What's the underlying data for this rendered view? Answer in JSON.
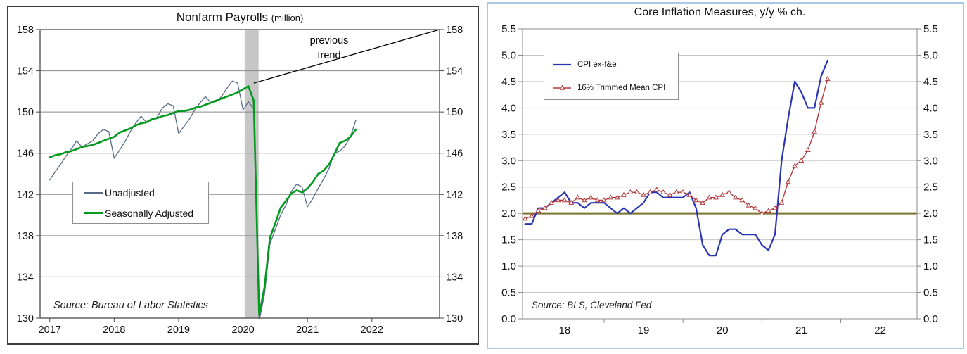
{
  "panels": {
    "left": {
      "title": "Nonfarm Payrolls",
      "title_unit": "(million)",
      "annotation": {
        "line1": "previous",
        "line2": "trend"
      },
      "source": "Source: Bureau of Labor Statistics",
      "border_color": "#3c3c3c"
    },
    "right": {
      "title": "Core Inflation Measures, y/y % ch.",
      "source": "Source: BLS, Cleveland Fed",
      "border_color": "#a9c9e6"
    }
  },
  "chart_data": [
    {
      "type": "line",
      "title": "Nonfarm Payrolls (million)",
      "source": "Source: Bureau of Labor Statistics",
      "xlabel": "",
      "ylabel": "",
      "ylim": [
        130,
        158
      ],
      "ytick_step": 4,
      "ytick_decimals": 0,
      "yticks_both_sides": true,
      "grid": "horizontal",
      "x_start": "2017-01",
      "x_end": "2021-10",
      "x_freq": "monthly",
      "x_tick_labels": [
        "2017",
        "2018",
        "2019",
        "2020",
        "2021",
        "2022"
      ],
      "recession_band": {
        "label": "Feb-Apr 2020 recession shading",
        "start_month_index": 37,
        "end_month_index": 39,
        "color": "#c6c6c6"
      },
      "previous_trend_line": {
        "label": "previous trend",
        "start_month_index": 38,
        "start_value": 152.8,
        "end_value": 158.0,
        "color": "#000000"
      },
      "legend_position": "lower-left",
      "series": [
        {
          "name": "Unadjusted",
          "color": "#5a6a86",
          "line_width": 1.3,
          "marker": "none",
          "values": [
            143.4,
            144.2,
            144.9,
            145.7,
            146.4,
            147.2,
            146.6,
            146.9,
            147.2,
            147.9,
            148.3,
            148.1,
            145.5,
            146.3,
            147.1,
            148.1,
            148.9,
            149.6,
            149.0,
            149.2,
            149.5,
            150.4,
            150.8,
            150.6,
            147.9,
            148.6,
            149.3,
            150.2,
            150.9,
            151.5,
            150.9,
            151.0,
            151.5,
            152.3,
            153.0,
            152.8,
            150.2,
            151.0,
            150.3,
            129.7,
            132.3,
            137.2,
            138.6,
            140.0,
            141.0,
            142.3,
            143.0,
            142.7,
            140.8,
            141.6,
            142.6,
            143.5,
            144.5,
            146.0,
            146.2,
            146.7,
            147.6,
            149.2
          ]
        },
        {
          "name": "Seasonally Adjusted",
          "color": "#009a1e",
          "line_width": 2.6,
          "marker": "none",
          "values": [
            145.6,
            145.8,
            145.9,
            146.1,
            146.2,
            146.4,
            146.6,
            146.7,
            146.8,
            147.0,
            147.2,
            147.4,
            147.6,
            148.0,
            148.2,
            148.4,
            148.7,
            148.9,
            149.0,
            149.3,
            149.4,
            149.6,
            149.7,
            149.9,
            150.1,
            150.1,
            150.2,
            150.4,
            150.5,
            150.7,
            150.9,
            151.1,
            151.3,
            151.5,
            151.7,
            151.9,
            152.2,
            152.5,
            151.1,
            130.3,
            133.0,
            137.8,
            139.2,
            140.7,
            141.4,
            142.1,
            142.4,
            142.2,
            142.6,
            143.2,
            144.0,
            144.3,
            144.9,
            145.9,
            147.0,
            147.2,
            147.6,
            148.3
          ]
        }
      ]
    },
    {
      "type": "line",
      "title": "Core Inflation Measures, y/y % ch.",
      "source": "Source: BLS, Cleveland Fed",
      "xlabel": "",
      "ylabel": "",
      "ylim": [
        0,
        5.5
      ],
      "ytick_step": 0.5,
      "ytick_decimals": 1,
      "yticks_both_sides": true,
      "grid": "horizontal",
      "x_start": "2018-01",
      "x_end": "2021-11",
      "x_freq": "monthly",
      "x_tick_labels": [
        "18",
        "19",
        "20",
        "21",
        "22"
      ],
      "reference_line": {
        "label": "2 percent level",
        "value": 2.0,
        "color": "#7d752e",
        "width": 3
      },
      "legend_position": "upper-left",
      "series": [
        {
          "name": "CPI ex-f&e",
          "color": "#2a35b5",
          "line_width": 2.2,
          "marker": "none",
          "values": [
            1.8,
            1.8,
            2.1,
            2.1,
            2.2,
            2.3,
            2.4,
            2.2,
            2.2,
            2.1,
            2.2,
            2.2,
            2.2,
            2.1,
            2.0,
            2.1,
            2.0,
            2.1,
            2.2,
            2.4,
            2.4,
            2.3,
            2.3,
            2.3,
            2.3,
            2.4,
            2.1,
            1.4,
            1.2,
            1.2,
            1.6,
            1.7,
            1.7,
            1.6,
            1.6,
            1.6,
            1.4,
            1.3,
            1.6,
            3.0,
            3.8,
            4.5,
            4.3,
            4.0,
            4.0,
            4.6,
            4.9
          ]
        },
        {
          "name": "16% Trimmed Mean CPI",
          "color": "#b03a3c",
          "line_width": 1.4,
          "marker": "open-triangle",
          "values": [
            1.9,
            1.95,
            2.05,
            2.1,
            2.2,
            2.25,
            2.25,
            2.2,
            2.3,
            2.25,
            2.3,
            2.25,
            2.25,
            2.3,
            2.3,
            2.35,
            2.4,
            2.4,
            2.35,
            2.4,
            2.45,
            2.4,
            2.35,
            2.4,
            2.4,
            2.35,
            2.25,
            2.2,
            2.3,
            2.3,
            2.35,
            2.4,
            2.3,
            2.25,
            2.15,
            2.1,
            2.0,
            2.05,
            2.1,
            2.2,
            2.6,
            2.9,
            3.0,
            3.2,
            3.55,
            4.1,
            4.55
          ]
        }
      ]
    }
  ]
}
